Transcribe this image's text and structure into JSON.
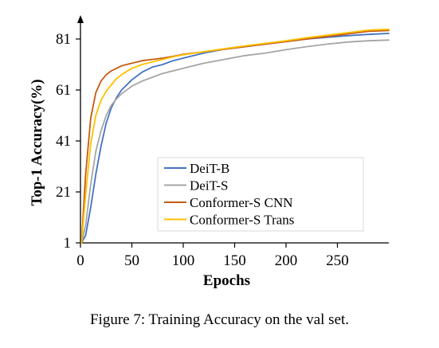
{
  "caption": "Figure 7: Training Accuracy on the val set.",
  "chart_data": {
    "type": "line",
    "title": "",
    "xlabel": "Epochs",
    "ylabel": "Top-1 Accuracy(%)",
    "xlim": [
      0,
      300
    ],
    "ylim": [
      1,
      86
    ],
    "x_ticks": [
      0,
      50,
      100,
      150,
      200,
      250
    ],
    "y_ticks": [
      1,
      21,
      41,
      61,
      81
    ],
    "grid": false,
    "legend_position": "lower-right",
    "x": [
      1,
      5,
      10,
      15,
      20,
      25,
      30,
      35,
      40,
      50,
      60,
      70,
      80,
      90,
      100,
      120,
      140,
      160,
      180,
      200,
      220,
      240,
      260,
      280,
      300
    ],
    "series": [
      {
        "name": "DeiT-B",
        "color": "#4472C4",
        "values": [
          1,
          4,
          15,
          28,
          39,
          48,
          54,
          58,
          61,
          65,
          68,
          70,
          71,
          72.5,
          73.5,
          75.5,
          77,
          78,
          79,
          80,
          81,
          81.7,
          82.3,
          82.8,
          83.2
        ]
      },
      {
        "name": "DeiT-S",
        "color": "#A5A5A5",
        "values": [
          1,
          8,
          24,
          37,
          45,
          51,
          55,
          57.5,
          59.5,
          62.5,
          64.5,
          66,
          67.5,
          68.5,
          69.5,
          71.5,
          73,
          74.5,
          75.5,
          76.8,
          78,
          79,
          79.8,
          80.3,
          80.6
        ]
      },
      {
        "name": "Conformer-S CNN",
        "color": "#C55A11",
        "values": [
          1,
          28,
          50,
          60,
          64.5,
          67,
          68.5,
          69.5,
          70.5,
          71.5,
          72.5,
          73,
          73.5,
          74.2,
          75,
          76,
          77,
          78,
          79,
          80,
          81,
          82,
          83,
          84,
          84.3
        ]
      },
      {
        "name": "Conformer-S Trans",
        "color": "#FFC000",
        "values": [
          1,
          20,
          40,
          51,
          57,
          60.5,
          63,
          65.5,
          67,
          69.5,
          71,
          72,
          73,
          74,
          74.8,
          76,
          77.2,
          78.3,
          79.3,
          80.3,
          81.5,
          82.5,
          83.5,
          84.5,
          84.8
        ]
      }
    ]
  }
}
